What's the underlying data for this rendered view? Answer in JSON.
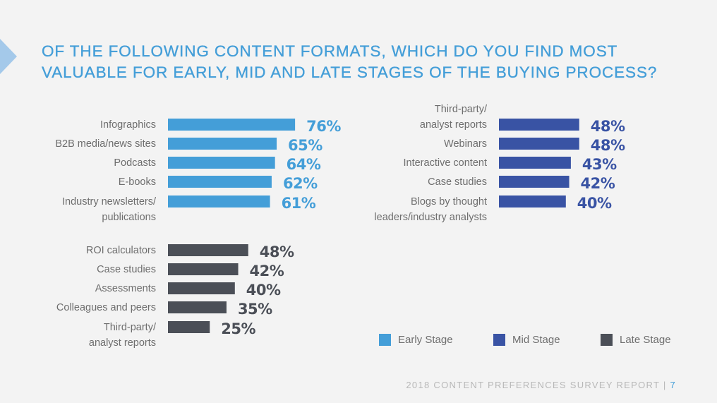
{
  "page": {
    "title_lines": [
      "OF THE FOLLOWING CONTENT FORMATS, WHICH DO YOU FIND MOST",
      "VALUABLE FOR EARLY, MID AND LATE STAGES OF THE BUYING PROCESS?"
    ],
    "footer_text": "2018 CONTENT PREFERENCES SURVEY REPORT | ",
    "page_number": "7",
    "decor_icon": "chevron-right-arrow-icon"
  },
  "chart_data": {
    "type": "bar",
    "orientation": "horizontal",
    "title": "OF THE FOLLOWING CONTENT FORMATS, WHICH DO YOU FIND MOST VALUABLE FOR EARLY, MID AND LATE STAGES OF THE BUYING PROCESS?",
    "xlabel": "",
    "ylabel": "",
    "value_format": "percent",
    "xlim": [
      0,
      100
    ],
    "grid": false,
    "legend_position": "bottom-right",
    "legend": [
      {
        "name": "Early Stage",
        "color": "#449ed8"
      },
      {
        "name": "Mid Stage",
        "color": "#3953a4"
      },
      {
        "name": "Late Stage",
        "color": "#4b4f57"
      }
    ],
    "series": [
      {
        "name": "Early Stage",
        "color": "#449ed8",
        "categories": [
          [
            "Infographics"
          ],
          [
            "B2B media/news sites"
          ],
          [
            "Podcasts"
          ],
          [
            "E-books"
          ],
          [
            "Industry newsletters/",
            "publications"
          ]
        ],
        "values": [
          76,
          65,
          64,
          62,
          61
        ]
      },
      {
        "name": "Mid Stage",
        "color": "#3953a4",
        "categories": [
          [
            "Third-party/",
            "analyst reports"
          ],
          [
            "Webinars"
          ],
          [
            "Interactive content"
          ],
          [
            "Case studies"
          ],
          [
            "Blogs by thought",
            "leaders/industry analysts"
          ]
        ],
        "values": [
          48,
          48,
          43,
          42,
          40
        ]
      },
      {
        "name": "Late Stage",
        "color": "#4b4f57",
        "categories": [
          [
            "ROI calculators"
          ],
          [
            "Case studies"
          ],
          [
            "Assessments"
          ],
          [
            "Colleagues and peers"
          ],
          [
            "Third-party/",
            "analyst reports"
          ]
        ],
        "values": [
          48,
          42,
          40,
          35,
          25
        ]
      }
    ]
  }
}
